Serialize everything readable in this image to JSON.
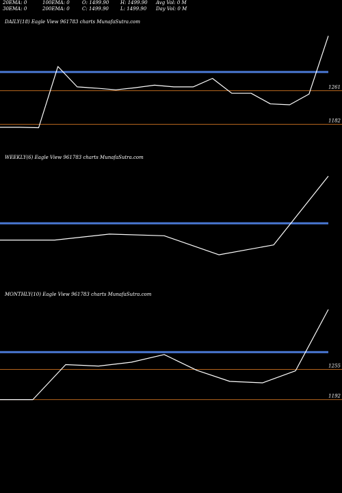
{
  "header": {
    "row1": [
      "20EMA: 0",
      "100EMA: 0",
      "O: 1499.90",
      "H: 1499.90",
      "Avg Vol: 0  M"
    ],
    "row2": [
      "30EMA: 0",
      "200EMA: 0",
      "C: 1499.90",
      "L: 1499.90",
      "Day Vol: 0  M"
    ]
  },
  "colors": {
    "background": "#000000",
    "price_line": "#ffffff",
    "ema_band": "#4a78d4",
    "level_line": "#b5651d"
  },
  "chart_data": [
    {
      "type": "line",
      "title": "DAILY(18) Eagle  View  961783 charts MunafaSutra.com",
      "x": [
        1,
        2,
        3,
        4,
        5,
        6,
        7,
        8,
        9,
        10,
        11,
        12,
        13,
        14,
        15,
        16,
        17,
        18
      ],
      "values": [
        1175,
        1175,
        1174,
        1318,
        1270,
        1267,
        1263,
        1268,
        1274,
        1270,
        1270,
        1290,
        1255,
        1255,
        1230,
        1228,
        1253,
        1390
      ],
      "ylim": [
        1120,
        1410
      ],
      "ema_band": 1305,
      "levels": [
        {
          "value": 1261,
          "label": "1261"
        },
        {
          "value": 1182,
          "label": "1182"
        }
      ]
    },
    {
      "type": "line",
      "title": "WEEKLY(6) Eagle  View  961783 charts MunafaSutra.com",
      "x": [
        1,
        2,
        3,
        4,
        5,
        6,
        7
      ],
      "values": [
        1245,
        1245,
        1263,
        1258,
        1200,
        1230,
        1440
      ],
      "ylim": [
        1100,
        1480
      ],
      "ema_band": 1296,
      "levels": []
    },
    {
      "type": "line",
      "title": "MONTHLY(10) Eagle  View  961783 charts MunafaSutra.com",
      "x": [
        1,
        2,
        3,
        4,
        5,
        6,
        7,
        8,
        9,
        10,
        11
      ],
      "values": [
        1192,
        1192,
        1265,
        1262,
        1270,
        1286,
        1253,
        1230,
        1227,
        1252,
        1380
      ],
      "ylim": [
        1140,
        1400
      ],
      "ema_band": 1291,
      "levels": [
        {
          "value": 1255,
          "label": "1255"
        },
        {
          "value": 1192,
          "label": "1192"
        }
      ]
    }
  ]
}
